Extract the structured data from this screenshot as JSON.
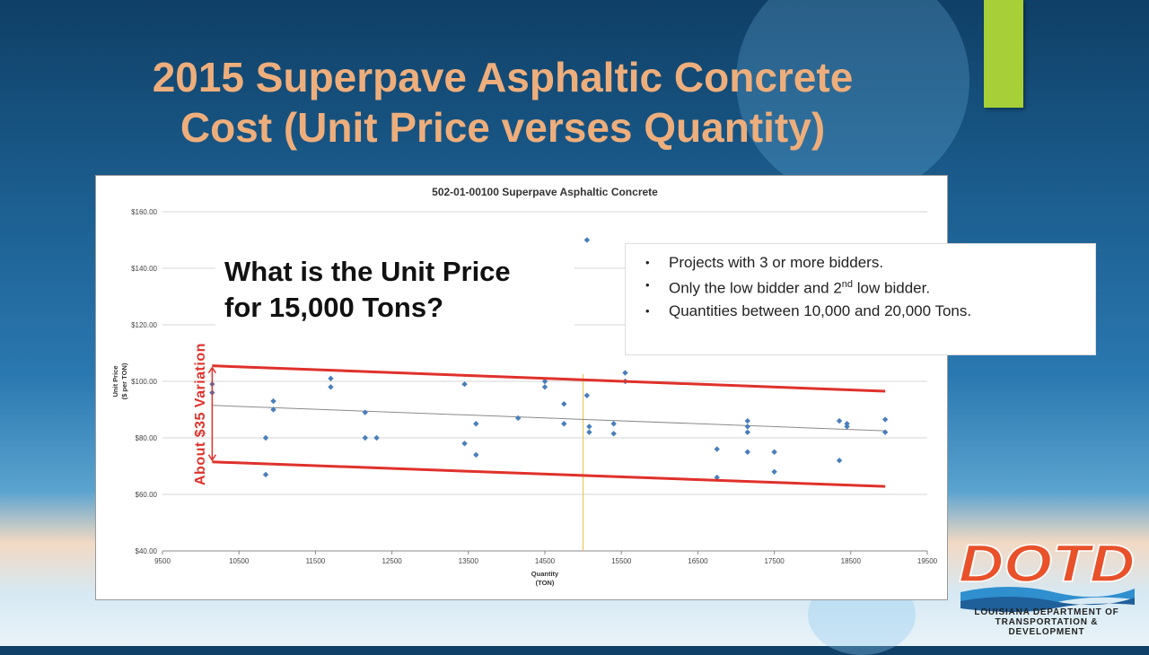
{
  "slide": {
    "title_line1": "2015 Superpave Asphaltic Concrete",
    "title_line2": "Cost (Unit Price verses Quantity)",
    "question_line1": "What is the Unit Price",
    "question_line2": "for 15,000 Tons?",
    "variation_label": "About $35 Variation",
    "notes": [
      "Projects with 3 or more bidders.",
      "Only the low bidder and 2",
      "low bidder.",
      "Quantities between 10,000 and 20,000 Tons."
    ],
    "notes_sup": "nd",
    "logo_text": "DOTD",
    "logo_caption_line1": "LOUISIANA DEPARTMENT OF",
    "logo_caption_line2": "TRANSPORTATION & DEVELOPMENT",
    "colors": {
      "title": "#eeae7c",
      "accent": "#a6cf38",
      "marker": "#4a7ebb",
      "band": "#e0312b",
      "marker_line": "#e8c040"
    }
  },
  "chart_data": {
    "type": "scatter",
    "title": "502-01-00100 Superpave Asphaltic Concrete",
    "xlabel": "Quantity",
    "xlabel_unit": "(TON)",
    "ylabel": "Unit Price",
    "ylabel_unit": "($ per TON)",
    "xlim": [
      9500,
      19500
    ],
    "ylim": [
      40,
      160
    ],
    "x_ticks": [
      "9500",
      "10500",
      "11500",
      "12500",
      "13500",
      "14500",
      "15500",
      "16500",
      "17500",
      "18500",
      "19500"
    ],
    "y_ticks": [
      "$40.00",
      "$60.00",
      "$80.00",
      "$100.00",
      "$120.00",
      "$140.00",
      "$160.00"
    ],
    "grid": "horizontal",
    "points": [
      [
        10150,
        99
      ],
      [
        10150,
        96
      ],
      [
        10850,
        80
      ],
      [
        10850,
        67
      ],
      [
        10950,
        93
      ],
      [
        10950,
        90
      ],
      [
        11700,
        101
      ],
      [
        11700,
        98
      ],
      [
        12150,
        89
      ],
      [
        12150,
        80
      ],
      [
        12300,
        80
      ],
      [
        13450,
        99
      ],
      [
        13450,
        78
      ],
      [
        13600,
        85
      ],
      [
        13600,
        74
      ],
      [
        14150,
        87
      ],
      [
        14500,
        100
      ],
      [
        14500,
        98
      ],
      [
        14750,
        92
      ],
      [
        14750,
        85
      ],
      [
        15050,
        150
      ],
      [
        15050,
        95
      ],
      [
        15080,
        84
      ],
      [
        15080,
        82
      ],
      [
        15400,
        85
      ],
      [
        15400,
        81.5
      ],
      [
        15550,
        103
      ],
      [
        15550,
        100
      ],
      [
        16750,
        76
      ],
      [
        16750,
        66
      ],
      [
        17150,
        86
      ],
      [
        17150,
        84
      ],
      [
        17150,
        82
      ],
      [
        17150,
        75
      ],
      [
        17500,
        75
      ],
      [
        17500,
        68
      ],
      [
        18350,
        86
      ],
      [
        18350,
        72
      ],
      [
        18450,
        85
      ],
      [
        18450,
        84
      ],
      [
        18950,
        86.5
      ],
      [
        18950,
        82
      ]
    ],
    "trendline": [
      [
        10150,
        91.5
      ],
      [
        18950,
        82.5
      ]
    ],
    "band_upper": [
      [
        10150,
        105.5
      ],
      [
        18950,
        96.5
      ]
    ],
    "band_lower": [
      [
        10150,
        71.5
      ],
      [
        18950,
        62.8
      ]
    ],
    "reference_x": 15000
  }
}
